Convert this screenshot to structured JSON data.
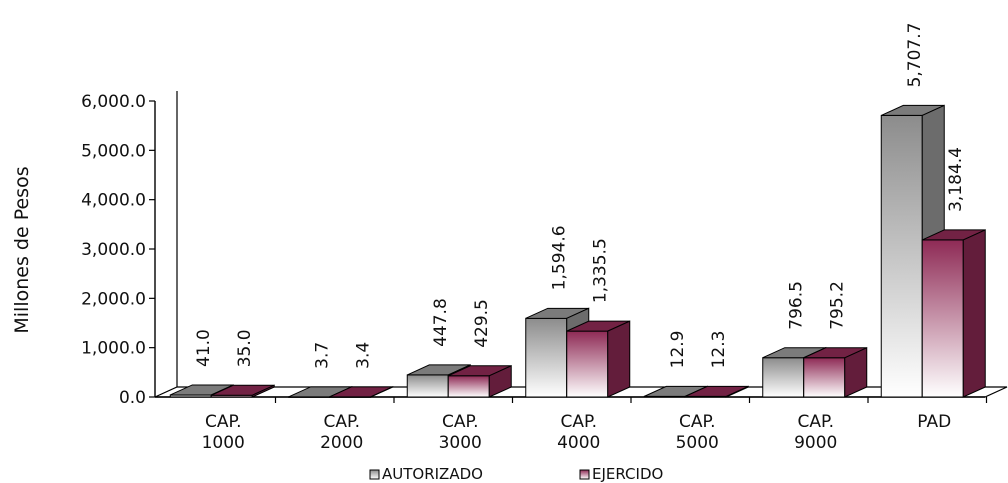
{
  "chart_data": {
    "type": "bar",
    "title": "",
    "xlabel": "",
    "ylabel": "Millones de Pesos",
    "ylim": [
      0,
      6000
    ],
    "yticks": [
      "0.0",
      "1,000.0",
      "2,000.0",
      "3,000.0",
      "4,000.0",
      "5,000.0",
      "6,000.0"
    ],
    "grid": false,
    "legend_position": "bottom",
    "categories": [
      [
        "CAP.",
        "1000"
      ],
      [
        "CAP.",
        "2000"
      ],
      [
        "CAP.",
        "3000"
      ],
      [
        "CAP.",
        "4000"
      ],
      [
        "CAP.",
        "5000"
      ],
      [
        "CAP.",
        "9000"
      ],
      [
        "PAD"
      ]
    ],
    "series": [
      {
        "name": "AUTORIZADO",
        "values": [
          41.0,
          3.7,
          447.8,
          1594.6,
          12.9,
          796.5,
          5707.7
        ],
        "labels": [
          "41.0",
          "3.7",
          "447.8",
          "1,594.6",
          "12.9",
          "796.5",
          "5,707.7"
        ],
        "color": "#9a9a9a"
      },
      {
        "name": "EJERCIDO",
        "values": [
          35.0,
          3.4,
          429.5,
          1335.5,
          12.3,
          795.2,
          3184.4
        ],
        "labels": [
          "35.0",
          "3.4",
          "429.5",
          "1,335.5",
          "12.3",
          "795.2",
          "3,184.4"
        ],
        "color": "#8e2a55"
      }
    ]
  }
}
